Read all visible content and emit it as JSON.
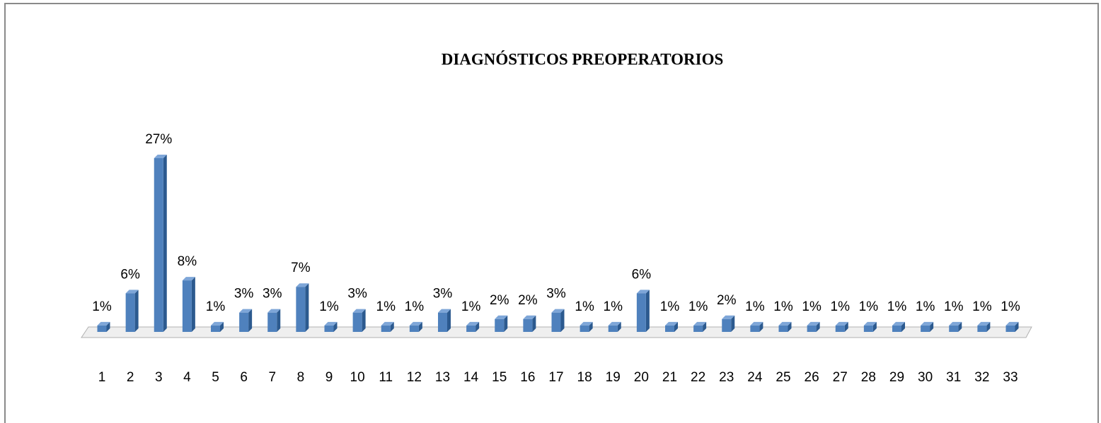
{
  "chart_data": {
    "type": "bar3d",
    "title": "DIAGNÓSTICOS PREOPERATORIOS",
    "categories": [
      "1",
      "2",
      "3",
      "4",
      "5",
      "6",
      "7",
      "8",
      "9",
      "10",
      "11",
      "12",
      "13",
      "14",
      "15",
      "16",
      "17",
      "18",
      "19",
      "20",
      "21",
      "22",
      "23",
      "24",
      "25",
      "26",
      "27",
      "28",
      "29",
      "30",
      "31",
      "32",
      "33"
    ],
    "values": [
      1,
      6,
      27,
      8,
      1,
      3,
      3,
      7,
      1,
      3,
      1,
      1,
      3,
      1,
      2,
      2,
      3,
      1,
      1,
      6,
      1,
      1,
      2,
      1,
      1,
      1,
      1,
      1,
      1,
      1,
      1,
      1,
      1
    ],
    "value_labels": [
      "1%",
      "6%",
      "27%",
      "8%",
      "1%",
      "3%",
      "3%",
      "7%",
      "1%",
      "3%",
      "1%",
      "1%",
      "3%",
      "1%",
      "2%",
      "2%",
      "3%",
      "1%",
      "1%",
      "6%",
      "1%",
      "1%",
      "2%",
      "1%",
      "1%",
      "1%",
      "1%",
      "1%",
      "1%",
      "1%",
      "1%",
      "1%",
      "1%"
    ],
    "color": "#4f81bd"
  }
}
